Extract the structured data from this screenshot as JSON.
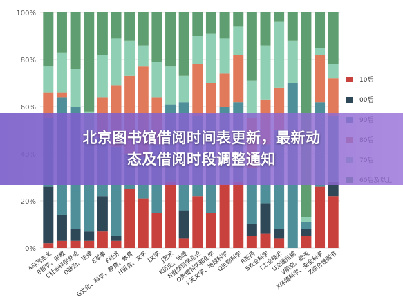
{
  "banner": {
    "line1": "北京图书馆借阅时间表更新，最新动",
    "line2": "态及借阅时段调整通知"
  },
  "chart_data": {
    "type": "bar",
    "stacked": true,
    "percent": true,
    "ylim": [
      0,
      100
    ],
    "yticks": [
      "0%",
      "20%",
      "40%",
      "60%",
      "80%",
      "100%"
    ],
    "legend_position": "right",
    "categories": [
      "A马列主义",
      "B哲学、宗教",
      "C社会科学总论",
      "D政治、法律",
      "E军事",
      "F经济",
      "G文化、科学、教育、体育",
      "H语言、文字",
      "I文学",
      "J艺术",
      "K历史、地理",
      "N自然科学总论",
      "O数理科学和化学",
      "P天文学、地球科学",
      "Q生物科学",
      "R医药",
      "S农业科学",
      "T工业技术",
      "U交通运输",
      "V航空、航天",
      "X环境科学、安全科学",
      "Z综合性图书"
    ],
    "series": [
      {
        "name": "10后",
        "color": "#c9413c",
        "values": [
          2,
          3,
          3,
          3,
          7,
          3,
          25,
          21,
          15,
          28,
          4,
          22,
          15,
          27,
          28,
          5,
          6,
          4,
          0,
          5,
          26,
          22
        ]
      },
      {
        "name": "00后",
        "color": "#2f4858",
        "values": [
          24,
          11,
          5,
          4,
          15,
          2,
          0,
          0,
          0,
          0,
          12,
          0,
          0,
          0,
          0,
          5,
          13,
          4,
          0,
          3,
          0,
          6
        ]
      },
      {
        "name": "90后",
        "color": "#4f8f99",
        "values": [
          29,
          50,
          52,
          40,
          25,
          38,
          15,
          18,
          29,
          33,
          46,
          34,
          42,
          33,
          34,
          24,
          25,
          42,
          70,
          3,
          36,
          28
        ]
      },
      {
        "name": "80后",
        "color": "#e07a5a",
        "values": [
          11,
          2,
          0,
          0,
          17,
          26,
          33,
          38,
          20,
          0,
          0,
          22,
          13,
          14,
          20,
          21,
          19,
          18,
          0,
          0,
          20,
          16
        ]
      },
      {
        "name": "70后",
        "color": "#8fcfb3",
        "values": [
          11,
          17,
          16,
          11,
          18,
          20,
          15,
          9,
          15,
          16,
          11,
          12,
          21,
          15,
          12,
          16,
          23,
          28,
          18,
          2,
          3,
          6
        ]
      },
      {
        "name": "60后及以上",
        "color": "#5f9e70",
        "values": [
          23,
          17,
          24,
          42,
          18,
          11,
          12,
          14,
          21,
          23,
          27,
          10,
          9,
          11,
          6,
          29,
          14,
          4,
          12,
          87,
          15,
          22
        ]
      }
    ]
  }
}
